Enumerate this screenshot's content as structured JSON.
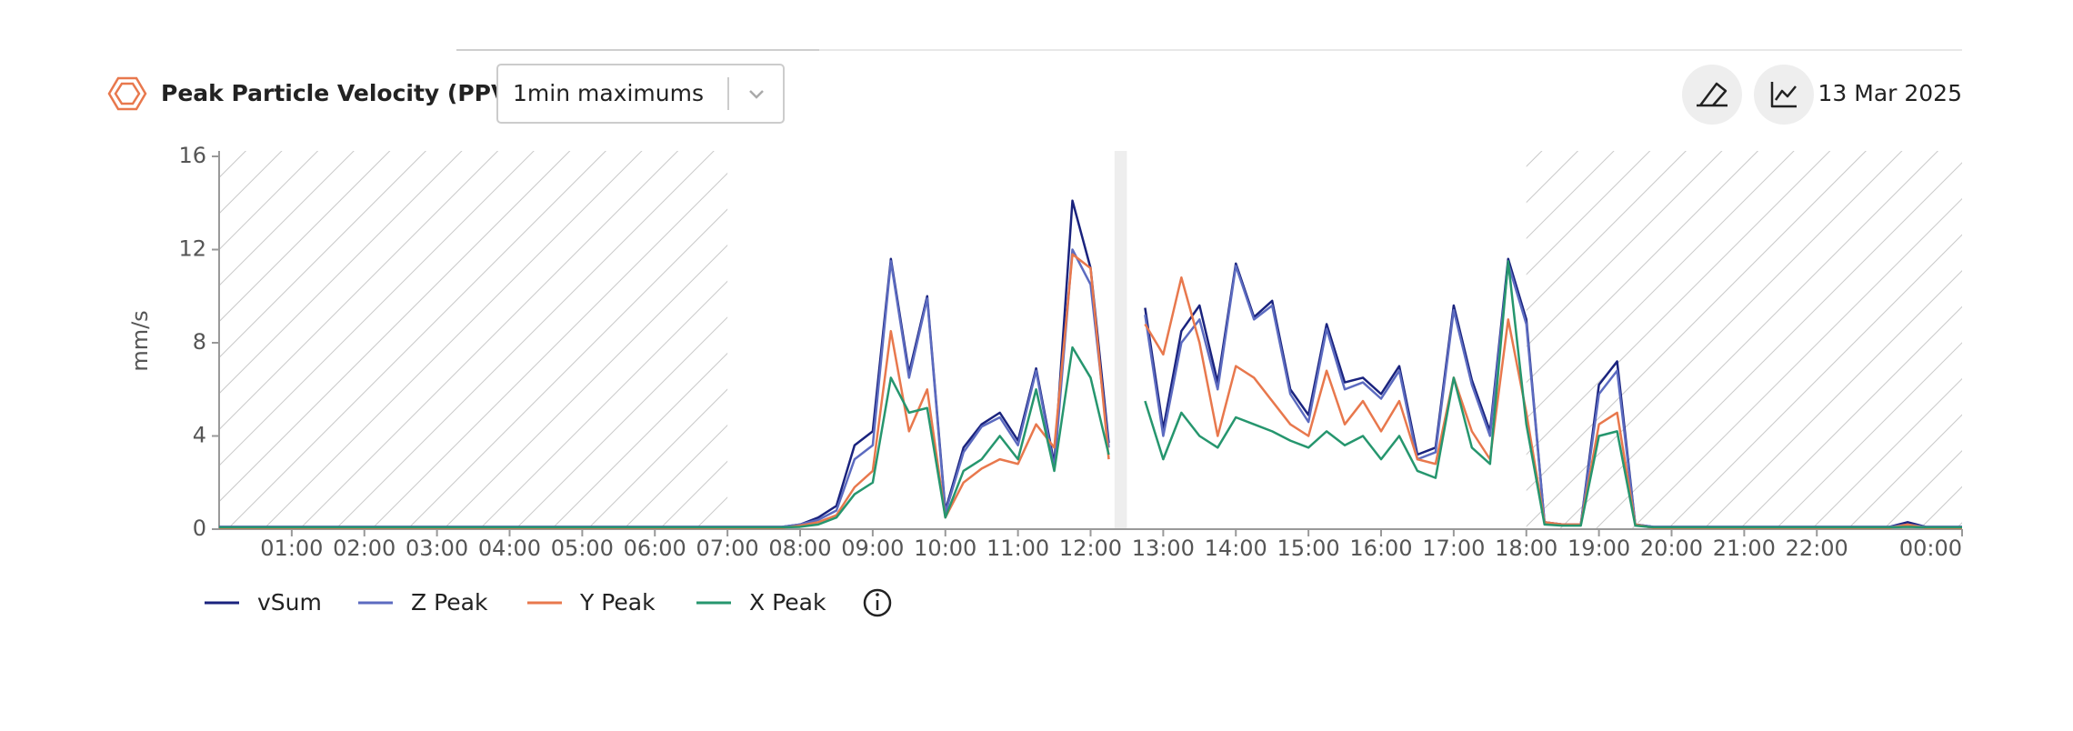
{
  "header": {
    "title": "Peak Particle Velocity (PPV)",
    "dropdown": "1min maximums",
    "date": "13 Mar 2025"
  },
  "chart_data": {
    "type": "line",
    "y_label": "mm/s",
    "x": [
      0,
      0.25,
      0.5,
      0.75,
      1,
      1.25,
      1.5,
      1.75,
      2,
      2.25,
      2.5,
      2.75,
      3,
      3.25,
      3.5,
      3.75,
      4,
      4.25,
      4.5,
      4.75,
      5,
      5.25,
      5.5,
      5.75,
      6,
      6.25,
      6.5,
      6.75,
      7,
      7.25,
      7.5,
      7.75,
      8,
      8.25,
      8.5,
      8.75,
      9,
      9.25,
      9.5,
      9.75,
      10,
      10.25,
      10.5,
      10.75,
      11,
      11.25,
      11.5,
      11.75,
      12,
      12.25,
      12.5,
      12.75,
      13,
      13.25,
      13.5,
      13.75,
      14,
      14.25,
      14.5,
      14.75,
      15,
      15.25,
      15.5,
      15.75,
      16,
      16.25,
      16.5,
      16.75,
      17,
      17.25,
      17.5,
      17.75,
      18,
      18.25,
      18.5,
      18.75,
      19,
      19.25,
      19.5,
      19.75,
      20,
      20.25,
      20.5,
      20.75,
      21,
      21.25,
      21.5,
      21.75,
      22,
      22.25,
      22.5,
      22.75,
      23,
      23.25,
      23.5,
      23.75,
      24
    ],
    "xlim": [
      0,
      24
    ],
    "xticks": [
      {
        "value": 1,
        "label": "01:00"
      },
      {
        "value": 2,
        "label": "02:00"
      },
      {
        "value": 3,
        "label": "03:00"
      },
      {
        "value": 4,
        "label": "04:00"
      },
      {
        "value": 5,
        "label": "05:00"
      },
      {
        "value": 6,
        "label": "06:00"
      },
      {
        "value": 7,
        "label": "07:00"
      },
      {
        "value": 8,
        "label": "08:00"
      },
      {
        "value": 9,
        "label": "09:00"
      },
      {
        "value": 10,
        "label": "10:00"
      },
      {
        "value": 11,
        "label": "11:00"
      },
      {
        "value": 12,
        "label": "12:00"
      },
      {
        "value": 13,
        "label": "13:00"
      },
      {
        "value": 14,
        "label": "14:00"
      },
      {
        "value": 15,
        "label": "15:00"
      },
      {
        "value": 16,
        "label": "16:00"
      },
      {
        "value": 17,
        "label": "17:00"
      },
      {
        "value": 18,
        "label": "18:00"
      },
      {
        "value": 19,
        "label": "19:00"
      },
      {
        "value": 20,
        "label": "20:00"
      },
      {
        "value": 21,
        "label": "21:00"
      },
      {
        "value": 22,
        "label": "22:00"
      },
      {
        "value": 24,
        "label": "00:00"
      }
    ],
    "ylim": [
      0,
      16
    ],
    "yticks": [
      0,
      4,
      8,
      12,
      16
    ],
    "hatched_ranges": [
      [
        0,
        7
      ],
      [
        18,
        24
      ]
    ],
    "gap_ranges": [
      [
        12.33,
        12.5
      ]
    ],
    "series": [
      {
        "name": "vSum",
        "color": "#1a237e",
        "values": [
          0.1,
          0.1,
          0.1,
          0.1,
          0.1,
          0.1,
          0.1,
          0.1,
          0.1,
          0.1,
          0.1,
          0.1,
          0.1,
          0.1,
          0.1,
          0.1,
          0.1,
          0.1,
          0.1,
          0.1,
          0.1,
          0.1,
          0.1,
          0.1,
          0.1,
          0.1,
          0.1,
          0.1,
          0.1,
          0.1,
          0.1,
          0.1,
          0.2,
          0.5,
          1.0,
          3.6,
          4.2,
          11.6,
          6.7,
          10.0,
          0.8,
          3.5,
          4.5,
          5.0,
          3.8,
          6.9,
          2.8,
          14.1,
          11.2,
          3.7,
          null,
          9.5,
          4.3,
          8.5,
          9.6,
          6.3,
          11.4,
          9.1,
          9.8,
          6.0,
          4.9,
          8.8,
          6.3,
          6.5,
          5.8,
          7.0,
          3.2,
          3.5,
          9.6,
          6.4,
          4.2,
          11.6,
          9.0,
          0.3,
          0.2,
          0.2,
          6.2,
          7.2,
          0.2,
          0.1,
          0.1,
          0.1,
          0.1,
          0.1,
          0.1,
          0.1,
          0.1,
          0.1,
          0.1,
          0.1,
          0.1,
          0.1,
          0.1,
          0.3,
          0.1,
          0.1,
          0.1
        ]
      },
      {
        "name": "Z Peak",
        "color": "#5c6bc0",
        "values": [
          0.1,
          0.1,
          0.1,
          0.1,
          0.1,
          0.1,
          0.1,
          0.1,
          0.1,
          0.1,
          0.1,
          0.1,
          0.1,
          0.1,
          0.1,
          0.1,
          0.1,
          0.1,
          0.1,
          0.1,
          0.1,
          0.1,
          0.1,
          0.1,
          0.1,
          0.1,
          0.1,
          0.1,
          0.1,
          0.1,
          0.1,
          0.1,
          0.2,
          0.4,
          0.8,
          3.0,
          3.6,
          11.5,
          6.5,
          9.9,
          0.7,
          3.3,
          4.4,
          4.8,
          3.6,
          6.8,
          2.6,
          12.0,
          10.5,
          3.5,
          null,
          9.2,
          4.0,
          8.0,
          9.0,
          6.0,
          11.3,
          9.0,
          9.6,
          5.8,
          4.6,
          8.6,
          6.0,
          6.3,
          5.6,
          6.8,
          3.0,
          3.3,
          9.4,
          6.2,
          4.0,
          11.4,
          8.8,
          0.3,
          0.2,
          0.2,
          5.8,
          6.8,
          0.2,
          0.1,
          0.1,
          0.1,
          0.1,
          0.1,
          0.1,
          0.1,
          0.1,
          0.1,
          0.1,
          0.1,
          0.1,
          0.1,
          0.1,
          0.2,
          0.1,
          0.1,
          0.1
        ]
      },
      {
        "name": "Y Peak",
        "color": "#e8784d",
        "values": [
          0.05,
          0.05,
          0.05,
          0.05,
          0.05,
          0.05,
          0.05,
          0.05,
          0.05,
          0.05,
          0.05,
          0.05,
          0.05,
          0.05,
          0.05,
          0.05,
          0.05,
          0.05,
          0.05,
          0.05,
          0.05,
          0.05,
          0.05,
          0.05,
          0.05,
          0.05,
          0.05,
          0.05,
          0.05,
          0.05,
          0.05,
          0.05,
          0.15,
          0.3,
          0.6,
          1.8,
          2.5,
          8.5,
          4.2,
          6.0,
          0.5,
          2.0,
          2.6,
          3.0,
          2.8,
          4.5,
          3.5,
          11.8,
          11.2,
          3.0,
          null,
          8.8,
          7.5,
          10.8,
          8.0,
          4.0,
          7.0,
          6.5,
          5.5,
          4.5,
          4.0,
          6.8,
          4.5,
          5.5,
          4.2,
          5.5,
          3.0,
          2.8,
          6.5,
          4.2,
          3.0,
          9.0,
          5.0,
          0.3,
          0.2,
          0.2,
          4.5,
          5.0,
          0.2,
          0.05,
          0.05,
          0.05,
          0.05,
          0.05,
          0.05,
          0.05,
          0.05,
          0.05,
          0.05,
          0.05,
          0.05,
          0.05,
          0.05,
          0.2,
          0.05,
          0.05,
          0.05
        ]
      },
      {
        "name": "X Peak",
        "color": "#26966e",
        "values": [
          0.08,
          0.08,
          0.08,
          0.08,
          0.08,
          0.08,
          0.08,
          0.08,
          0.08,
          0.08,
          0.08,
          0.08,
          0.08,
          0.08,
          0.08,
          0.08,
          0.08,
          0.08,
          0.08,
          0.08,
          0.08,
          0.08,
          0.08,
          0.08,
          0.08,
          0.08,
          0.08,
          0.08,
          0.08,
          0.08,
          0.08,
          0.08,
          0.1,
          0.2,
          0.5,
          1.5,
          2.0,
          6.5,
          5.0,
          5.2,
          0.5,
          2.5,
          3.0,
          4.0,
          3.0,
          6.0,
          2.5,
          7.8,
          6.5,
          3.2,
          null,
          5.5,
          3.0,
          5.0,
          4.0,
          3.5,
          4.8,
          4.5,
          4.2,
          3.8,
          3.5,
          4.2,
          3.6,
          4.0,
          3.0,
          4.0,
          2.5,
          2.2,
          6.5,
          3.5,
          2.8,
          11.5,
          4.5,
          0.2,
          0.15,
          0.15,
          4.0,
          4.2,
          0.15,
          0.08,
          0.08,
          0.08,
          0.08,
          0.08,
          0.08,
          0.08,
          0.08,
          0.08,
          0.08,
          0.08,
          0.08,
          0.08,
          0.08,
          0.1,
          0.08,
          0.08,
          0.08
        ]
      }
    ]
  }
}
